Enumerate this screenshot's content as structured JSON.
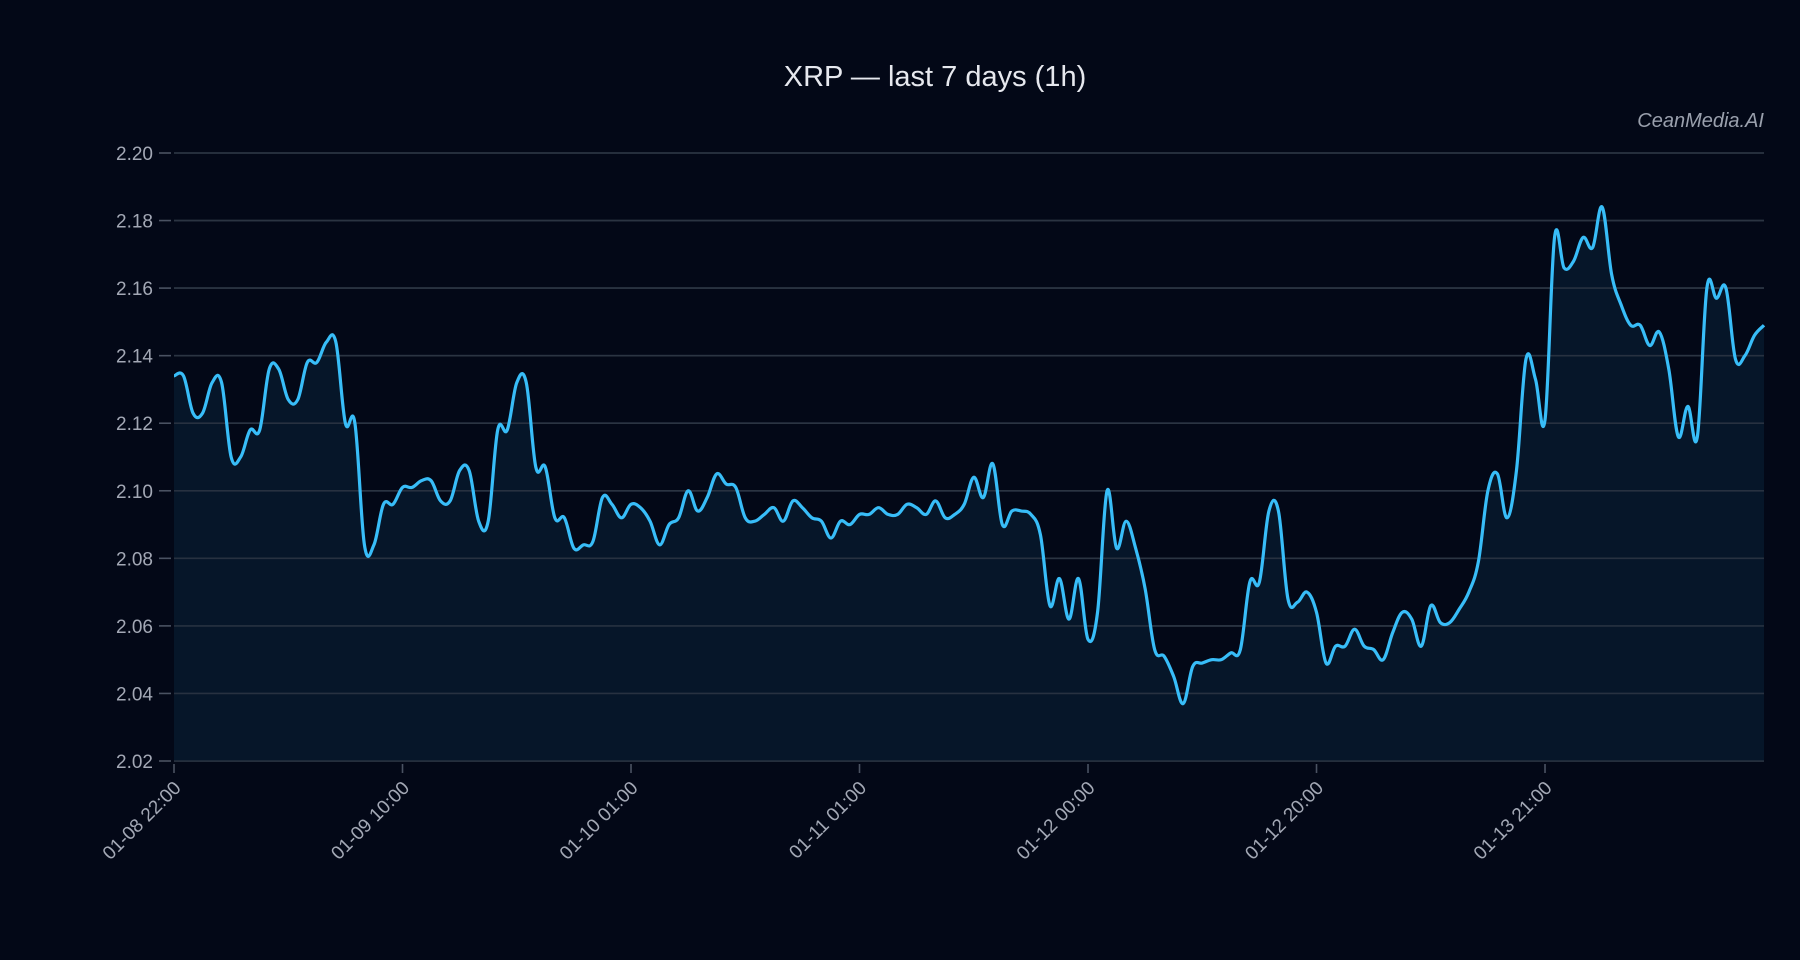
{
  "chart_data": {
    "type": "line",
    "title": "XRP — last 7 days (1h)",
    "watermark": "CeanMedia.AI",
    "xlabel": "",
    "ylabel": "",
    "ylim": [
      2.02,
      2.2
    ],
    "yticks": [
      "2.02",
      "2.04",
      "2.06",
      "2.08",
      "2.10",
      "2.12",
      "2.14",
      "2.16",
      "2.18",
      "2.20"
    ],
    "xtick_labels": [
      "01-08 22:00",
      "01-09 10:00",
      "01-10 01:00",
      "01-11 01:00",
      "01-12 00:00",
      "01-12 20:00",
      "01-13 21:00"
    ],
    "xtick_every_points": 24,
    "grid": true,
    "area_fill": true,
    "colors": {
      "line": "#38bdf8",
      "fill": "#061629",
      "background": "#030817",
      "grid": "#2b3443"
    },
    "series": [
      {
        "values": [
          2.134,
          2.134,
          2.123,
          2.123,
          2.132,
          2.132,
          2.11,
          2.11,
          2.118,
          2.118,
          2.136,
          2.136,
          2.127,
          2.127,
          2.138,
          2.138,
          2.144,
          2.144,
          2.12,
          2.12,
          2.084,
          2.084,
          2.096,
          2.096,
          2.101,
          2.101,
          2.103,
          2.103,
          2.097,
          2.097,
          2.106,
          2.106,
          2.091,
          2.091,
          2.118,
          2.118,
          2.132,
          2.132,
          2.107,
          2.107,
          2.092,
          2.092,
          2.083,
          2.084,
          2.085,
          2.098,
          2.096,
          2.092,
          2.096,
          2.095,
          2.091,
          2.084,
          2.09,
          2.092,
          2.1,
          2.094,
          2.098,
          2.105,
          2.102,
          2.101,
          2.092,
          2.091,
          2.093,
          2.095,
          2.091,
          2.097,
          2.095,
          2.092,
          2.091,
          2.086,
          2.091,
          2.09,
          2.093,
          2.093,
          2.095,
          2.093,
          2.093,
          2.096,
          2.095,
          2.093,
          2.097,
          2.092,
          2.093,
          2.096,
          2.104,
          2.098,
          2.108,
          2.09,
          2.094,
          2.094,
          2.093,
          2.087,
          2.066,
          2.074,
          2.062,
          2.074,
          2.056,
          2.064,
          2.1,
          2.083,
          2.091,
          2.083,
          2.071,
          2.053,
          2.051,
          2.045,
          2.037,
          2.048,
          2.049,
          2.05,
          2.05,
          2.052,
          2.053,
          2.073,
          2.073,
          2.094,
          2.094,
          2.068,
          2.067,
          2.07,
          2.064,
          2.049,
          2.054,
          2.054,
          2.059,
          2.054,
          2.053,
          2.05,
          2.058,
          2.064,
          2.062,
          2.054,
          2.066,
          2.061,
          2.061,
          2.065,
          2.07,
          2.079,
          2.1,
          2.105,
          2.092,
          2.106,
          2.139,
          2.133,
          2.121,
          2.175,
          2.166,
          2.168,
          2.175,
          2.172,
          2.184,
          2.164,
          2.155,
          2.149,
          2.149,
          2.143,
          2.147,
          2.136,
          2.116,
          2.125,
          2.116,
          2.16,
          2.157,
          2.16,
          2.139,
          2.14,
          2.146,
          2.149
        ]
      }
    ]
  }
}
